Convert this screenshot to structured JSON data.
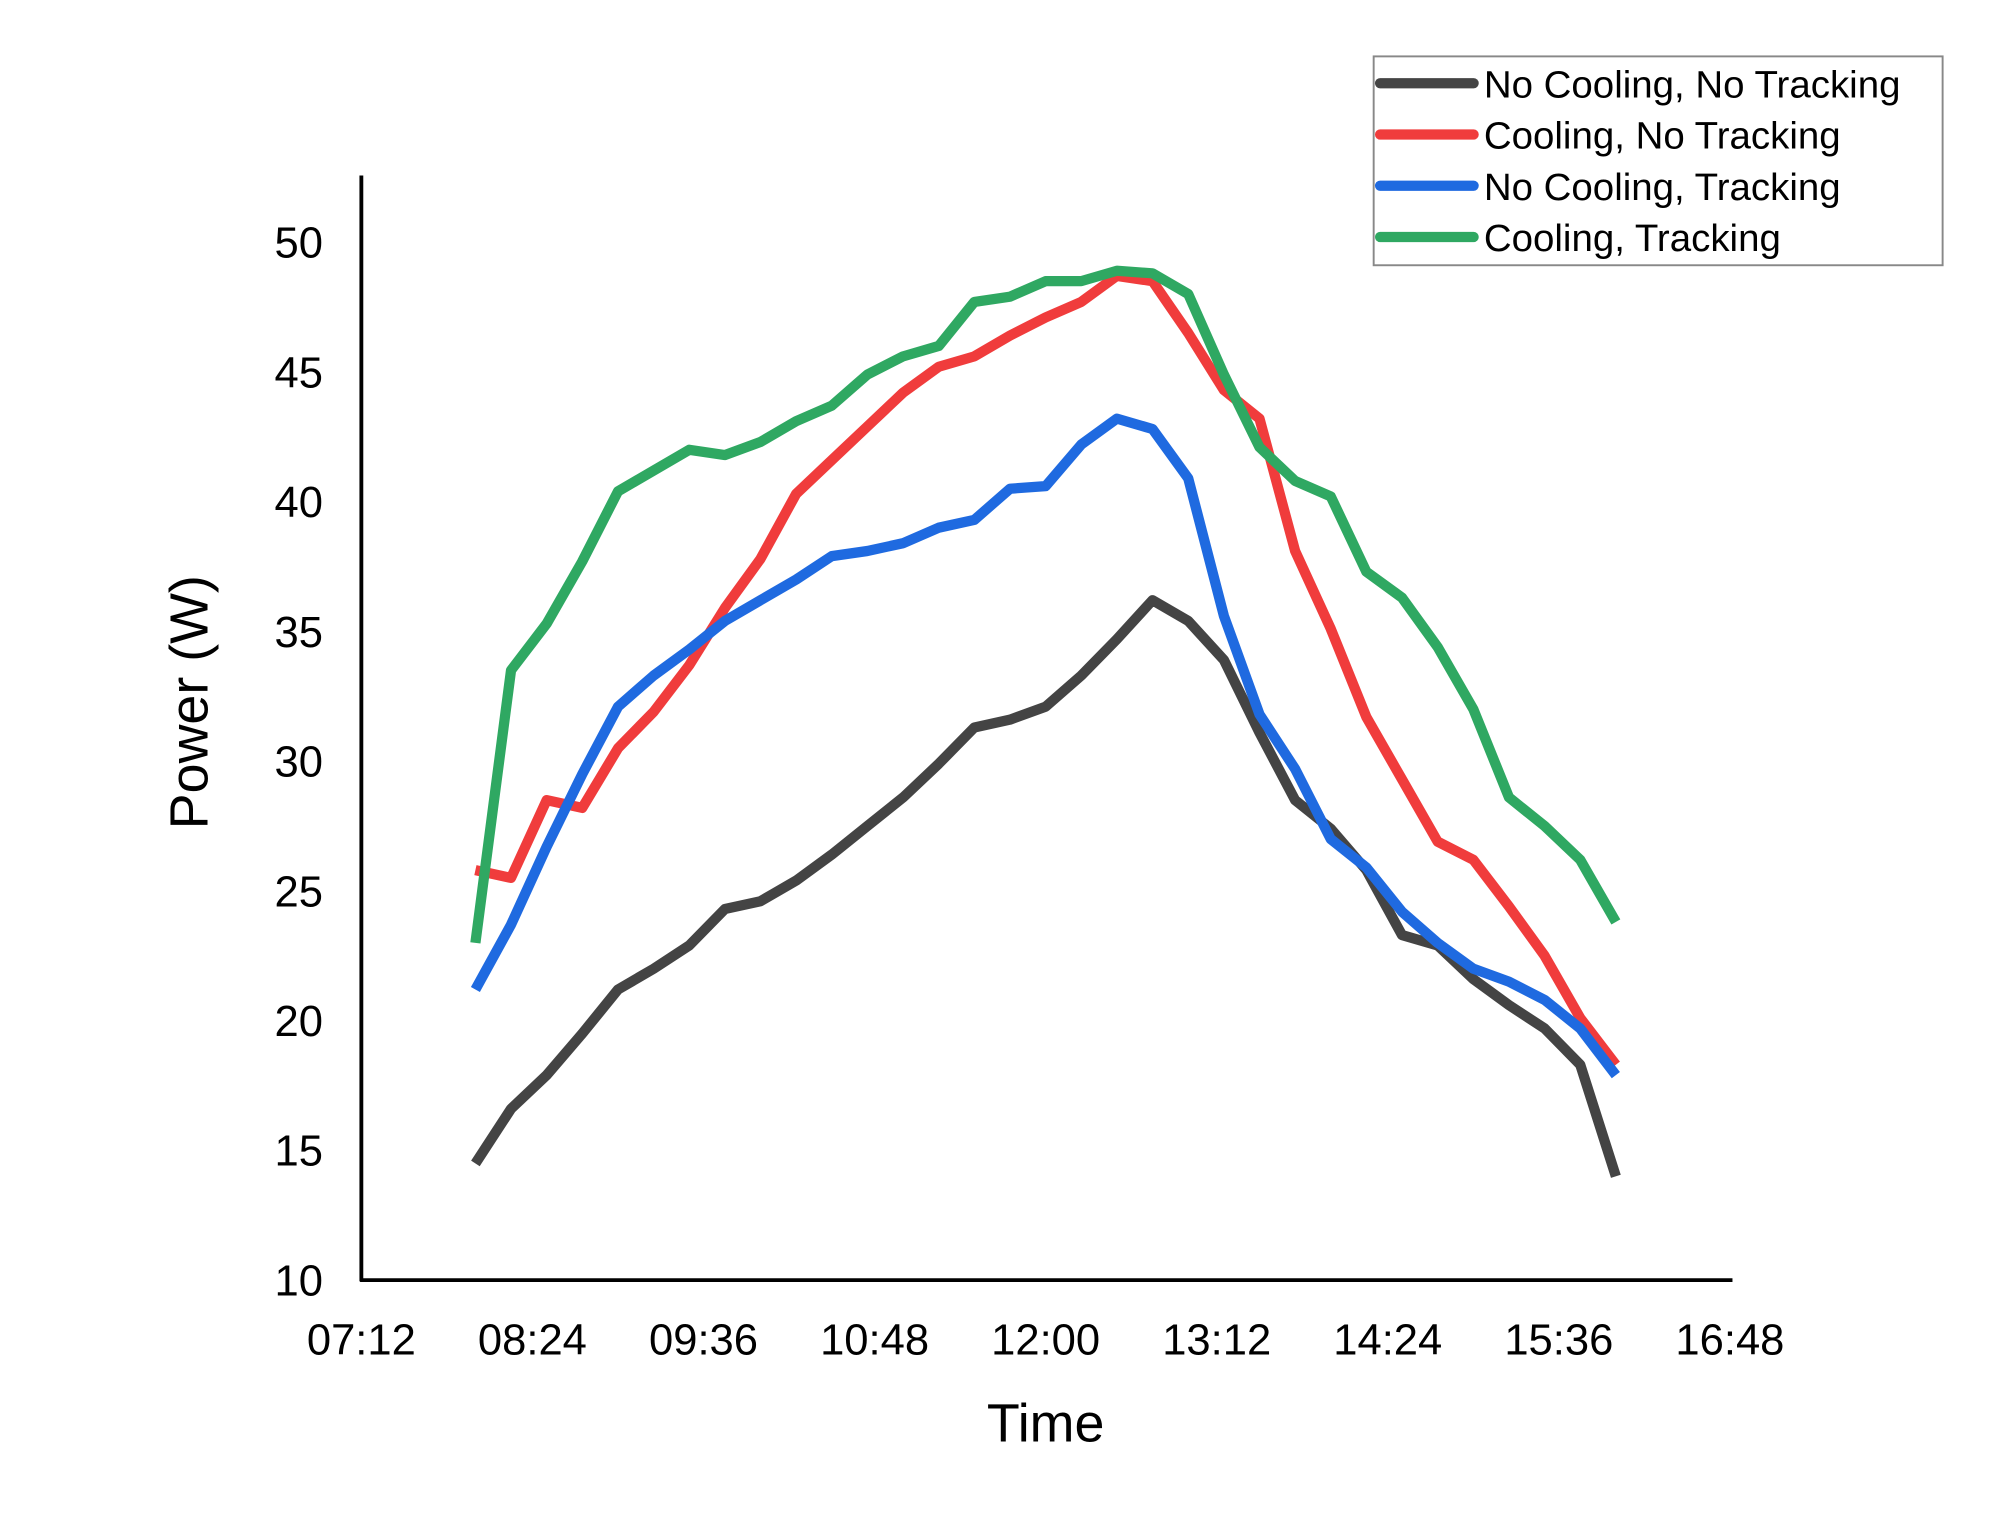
{
  "chart_data": {
    "type": "line",
    "title": "",
    "xlabel": "Time",
    "ylabel": "Power (W)",
    "xlim": [
      "07:12",
      "16:48"
    ],
    "ylim": [
      10,
      50
    ],
    "x_ticks": [
      "07:12",
      "08:24",
      "09:36",
      "10:48",
      "12:00",
      "13:12",
      "14:24",
      "15:36",
      "16:48"
    ],
    "y_ticks": [
      10,
      15,
      20,
      25,
      30,
      35,
      40,
      45,
      50
    ],
    "grid": false,
    "legend_position": "top-right",
    "x": [
      "08:00",
      "08:15",
      "08:30",
      "08:45",
      "09:00",
      "09:15",
      "09:30",
      "09:45",
      "10:00",
      "10:15",
      "10:30",
      "10:45",
      "11:00",
      "11:15",
      "11:30",
      "11:45",
      "12:00",
      "12:15",
      "12:30",
      "12:45",
      "13:00",
      "13:15",
      "13:30",
      "13:45",
      "14:00",
      "14:15",
      "14:30",
      "14:45",
      "15:00",
      "15:15",
      "15:30",
      "15:45",
      "16:00"
    ],
    "series": [
      {
        "name": "No Cooling, No Tracking",
        "color": "#444444",
        "values": [
          14.5,
          16.6,
          17.9,
          19.5,
          21.2,
          22.0,
          22.9,
          24.3,
          24.6,
          25.4,
          26.4,
          27.5,
          28.6,
          29.9,
          31.3,
          31.6,
          32.1,
          33.3,
          34.7,
          36.2,
          35.4,
          33.9,
          31.1,
          28.5,
          27.4,
          25.8,
          23.3,
          22.9,
          21.6,
          20.6,
          19.7,
          18.3,
          14.0
        ]
      },
      {
        "name": "Cooling, No Tracking",
        "color": "#f03c3c",
        "values": [
          25.8,
          25.5,
          28.5,
          28.2,
          30.5,
          31.9,
          33.7,
          35.9,
          37.8,
          40.3,
          41.6,
          42.9,
          44.2,
          45.2,
          45.6,
          46.4,
          47.1,
          47.7,
          48.7,
          48.5,
          46.5,
          44.3,
          43.2,
          38.1,
          35.1,
          31.7,
          29.3,
          26.9,
          26.2,
          24.4,
          22.5,
          20.1,
          18.3
        ]
      },
      {
        "name": "No Cooling, Tracking",
        "color": "#1f6ae0",
        "values": [
          21.2,
          23.7,
          26.7,
          29.5,
          32.1,
          33.3,
          34.3,
          35.4,
          36.2,
          37.0,
          37.9,
          38.1,
          38.4,
          39.0,
          39.3,
          40.5,
          40.6,
          42.2,
          43.2,
          42.8,
          40.9,
          35.6,
          31.8,
          29.7,
          27.0,
          25.9,
          24.2,
          23.0,
          22.0,
          21.5,
          20.8,
          19.7,
          17.9
        ]
      },
      {
        "name": "Cooling, Tracking",
        "color": "#2fa862",
        "values": [
          23.0,
          33.5,
          35.3,
          37.7,
          40.4,
          41.2,
          42.0,
          41.8,
          42.3,
          43.1,
          43.7,
          44.9,
          45.6,
          46.0,
          47.7,
          47.9,
          48.5,
          48.5,
          48.9,
          48.8,
          48.0,
          44.9,
          42.1,
          40.8,
          40.2,
          37.3,
          36.3,
          34.4,
          32.0,
          28.6,
          27.5,
          26.2,
          23.8
        ]
      }
    ]
  }
}
